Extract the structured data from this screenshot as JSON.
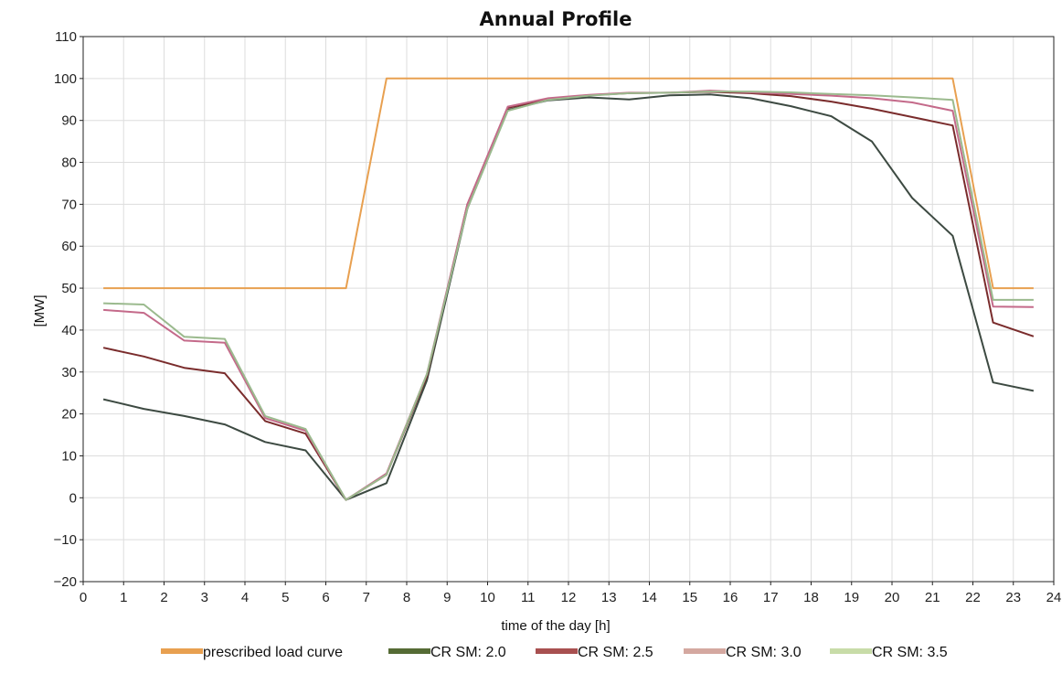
{
  "chart_data": {
    "type": "line",
    "title": "Annual Profile",
    "xlabel": "time of the day [h]",
    "ylabel": "[MW]",
    "xlim": [
      0,
      24
    ],
    "ylim": [
      -20,
      110
    ],
    "xticks": [
      0,
      1,
      2,
      3,
      4,
      5,
      6,
      7,
      8,
      9,
      10,
      11,
      12,
      13,
      14,
      15,
      16,
      17,
      18,
      19,
      20,
      21,
      22,
      23,
      24
    ],
    "yticks": [
      -20,
      -10,
      0,
      10,
      20,
      30,
      40,
      50,
      60,
      70,
      80,
      90,
      100,
      110
    ],
    "grid": true,
    "legend_position": "bottom",
    "series": [
      {
        "name": "prescribed load curve",
        "color": "#e8a050",
        "x": [
          0.5,
          6.5,
          7.5,
          21.5,
          22.5,
          23.5
        ],
        "values": [
          50,
          50,
          100,
          100,
          50,
          50
        ]
      },
      {
        "name": "CR SM: 2.0",
        "color": "#3d4a42",
        "legend_color": "#556b35",
        "x": [
          0.5,
          1.5,
          2.5,
          3.5,
          4.5,
          5.5,
          6.5,
          7.5,
          8.5,
          9.5,
          10.5,
          11.5,
          12.5,
          13.5,
          14.5,
          15.5,
          16.5,
          17.5,
          18.5,
          19.5,
          20.5,
          21.5,
          22.5,
          23.5
        ],
        "values": [
          23.5,
          21.2,
          19.5,
          17.5,
          13.3,
          11.3,
          -0.5,
          3.5,
          28,
          69,
          92.5,
          94.8,
          95.5,
          95,
          96,
          96.2,
          95.3,
          93.4,
          91,
          85,
          71.5,
          62.5,
          27.5,
          25.5
        ]
      },
      {
        "name": "CR SM: 2.5",
        "color": "#7a2c2c",
        "legend_color": "#a85050",
        "x": [
          0.5,
          1.5,
          2.5,
          3.5,
          4.5,
          5.5,
          6.5,
          7.5,
          8.5,
          9.5,
          10.5,
          11.5,
          12.5,
          13.5,
          14.5,
          15.5,
          16.5,
          17.5,
          18.5,
          19.5,
          20.5,
          21.5,
          22.5,
          23.5
        ],
        "values": [
          35.8,
          33.7,
          31,
          29.7,
          18.3,
          15.3,
          -0.5,
          5.5,
          29,
          70,
          93,
          95,
          96,
          96.5,
          96.6,
          96.8,
          96.5,
          95.8,
          94.5,
          92.8,
          90.8,
          88.8,
          41.8,
          38.5
        ]
      },
      {
        "name": "CR SM: 3.0",
        "color": "#c46a8a",
        "legend_color": "#d4a8a0",
        "x": [
          0.5,
          1.5,
          2.5,
          3.5,
          4.5,
          5.5,
          6.5,
          7.5,
          8.5,
          9.5,
          10.5,
          11.5,
          12.5,
          13.5,
          14.5,
          15.5,
          16.5,
          17.5,
          18.5,
          19.5,
          20.5,
          21.5,
          22.5,
          23.5
        ],
        "values": [
          44.8,
          44.1,
          37.5,
          37,
          19,
          16,
          -0.5,
          5.8,
          29.5,
          70,
          93.3,
          95.3,
          96.1,
          96.6,
          96.6,
          97.1,
          96.7,
          96.3,
          95.9,
          95.3,
          94.3,
          92.3,
          45.6,
          45.5
        ]
      },
      {
        "name": "CR SM: 3.5",
        "color": "#9bba8e",
        "legend_color": "#c8dca8",
        "x": [
          0.5,
          1.5,
          2.5,
          3.5,
          4.5,
          5.5,
          6.5,
          7.5,
          8.5,
          9.5,
          10.5,
          11.5,
          12.5,
          13.5,
          14.5,
          15.5,
          16.5,
          17.5,
          18.5,
          19.5,
          20.5,
          21.5,
          22.5,
          23.5
        ],
        "values": [
          46.4,
          46.1,
          38.4,
          37.9,
          19.5,
          16.4,
          -0.5,
          5.5,
          29.5,
          69,
          92.3,
          94.9,
          95.9,
          96.5,
          96.6,
          96.9,
          96.9,
          96.7,
          96.3,
          96,
          95.5,
          94.9,
          47.2,
          47.2
        ]
      }
    ]
  }
}
